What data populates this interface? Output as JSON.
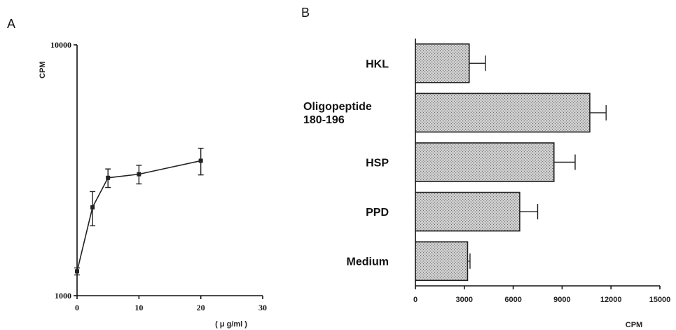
{
  "chart_data": [
    {
      "panel": "A",
      "type": "line",
      "ylabel": "CPM",
      "xlabel": "( μ g/ml )",
      "y_scale": "log",
      "xlim": [
        0,
        30
      ],
      "ylim": [
        1000,
        10000
      ],
      "x_ticks": [
        0,
        10,
        20,
        30
      ],
      "y_tick_labels": [
        "10000",
        "1000"
      ],
      "series": [
        {
          "x": [
            0,
            2.5,
            5,
            10,
            20
          ],
          "y": [
            1250,
            2250,
            2950,
            3050,
            3450
          ],
          "err": [
            40,
            350,
            250,
            260,
            420
          ]
        }
      ],
      "grid": false
    },
    {
      "panel": "B",
      "type": "bar",
      "orientation": "horizontal",
      "categories": [
        "HKL",
        "Oligopeptide",
        "HSP",
        "PPD",
        "Medium"
      ],
      "category_sublabels": [
        "",
        "180-196",
        "",
        "",
        ""
      ],
      "values": [
        3300,
        10700,
        8500,
        6400,
        3200
      ],
      "errors": [
        1000,
        1000,
        1300,
        1100,
        150
      ],
      "xlabel": "CPM",
      "xlim": [
        0,
        15000
      ],
      "x_ticks": [
        0,
        3000,
        6000,
        9000,
        12000,
        15000
      ],
      "grid": false
    }
  ]
}
